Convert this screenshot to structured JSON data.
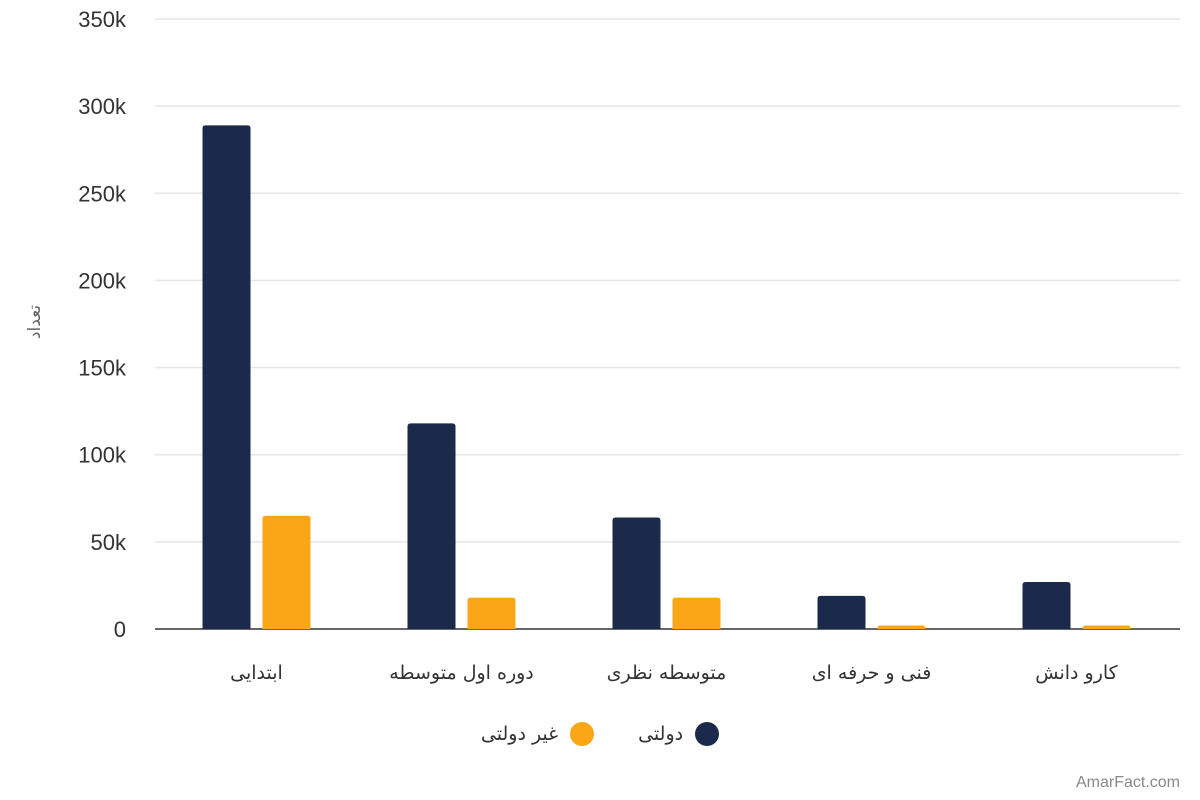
{
  "chart_data": {
    "type": "bar",
    "categories": [
      "ابتدایی",
      "دوره اول متوسطه",
      "متوسطه نظری",
      "فنی و حرفه ای",
      "کارو دانش"
    ],
    "series": [
      {
        "name": "دولتی",
        "color": "#1b2a4a",
        "values": [
          289000,
          118000,
          64000,
          19000,
          27000
        ]
      },
      {
        "name": "غیر دولتی",
        "color": "#fba617",
        "values": [
          65000,
          18000,
          18000,
          2000,
          2000
        ]
      }
    ],
    "ylabel": "تعداد",
    "ylim": [
      0,
      350000
    ],
    "yticks": [
      0,
      50000,
      100000,
      150000,
      200000,
      250000,
      300000,
      350000
    ],
    "ytick_labels": [
      "0",
      "50k",
      "100k",
      "150k",
      "200k",
      "250k",
      "300k",
      "350k"
    ],
    "grid": true,
    "legend_position": "bottom-center"
  },
  "credit": "AmarFact.com"
}
